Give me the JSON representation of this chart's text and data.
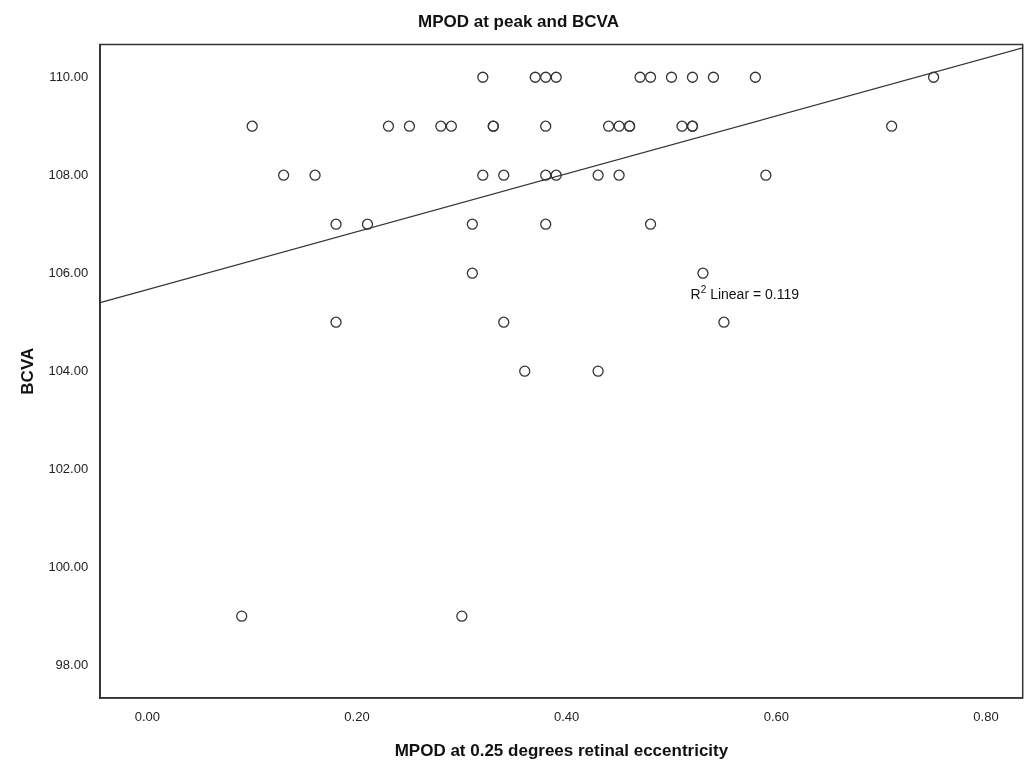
{
  "chart_data": {
    "type": "scatter",
    "title": "MPOD at peak and BCVA",
    "xlabel": "MPOD at 0.25 degrees retinal eccentricity",
    "ylabel": "BCVA",
    "xlim": [
      -0.045,
      0.835
    ],
    "ylim": [
      97.33,
      110.67
    ],
    "xticks": [
      {
        "value": 0,
        "label": "0.00"
      },
      {
        "value": 0.2,
        "label": "0.20"
      },
      {
        "value": 0.4,
        "label": "0.40"
      },
      {
        "value": 0.6,
        "label": "0.60"
      },
      {
        "value": 0.8,
        "label": "0.80"
      }
    ],
    "yticks": [
      {
        "value": 98,
        "label": "98.00"
      },
      {
        "value": 100,
        "label": "100.00"
      },
      {
        "value": 102,
        "label": "102.00"
      },
      {
        "value": 104,
        "label": "104.00"
      },
      {
        "value": 106,
        "label": "106.00"
      },
      {
        "value": 108,
        "label": "108.00"
      },
      {
        "value": 110,
        "label": "110.00"
      }
    ],
    "grid": false,
    "legend": false,
    "marker": "circle",
    "series": [
      {
        "color": "#333333",
        "x": [
          0.32,
          0.37,
          0.38,
          0.39,
          0.47,
          0.48,
          0.5,
          0.52,
          0.54,
          0.58,
          0.75,
          0.1,
          0.23,
          0.25,
          0.28,
          0.29,
          0.33,
          0.33,
          0.38,
          0.44,
          0.45,
          0.46,
          0.46,
          0.51,
          0.52,
          0.52,
          0.71,
          0.13,
          0.16,
          0.32,
          0.34,
          0.38,
          0.39,
          0.43,
          0.45,
          0.59,
          0.18,
          0.21,
          0.31,
          0.38,
          0.48,
          0.31,
          0.53,
          0.18,
          0.34,
          0.55,
          0.36,
          0.43,
          0.09,
          0.3
        ],
        "values": [
          110,
          110,
          110,
          110,
          110,
          110,
          110,
          110,
          110,
          110,
          110,
          109,
          109,
          109,
          109,
          109,
          109,
          109,
          109,
          109,
          109,
          109,
          109,
          109,
          109,
          109,
          109,
          108,
          108,
          108,
          108,
          108,
          108,
          108,
          108,
          108,
          107,
          107,
          107,
          107,
          107,
          106,
          106,
          105,
          105,
          105,
          104,
          104,
          99,
          99
        ]
      },
      {
        "type": "line",
        "color": "#333333",
        "marker": "none",
        "line_style": "solid",
        "x": [
          -0.045,
          0.835
        ],
        "values": [
          105.4,
          110.6
        ]
      }
    ],
    "annotations": [
      "R$^{2}$ Linear = 0.119"
    ]
  }
}
